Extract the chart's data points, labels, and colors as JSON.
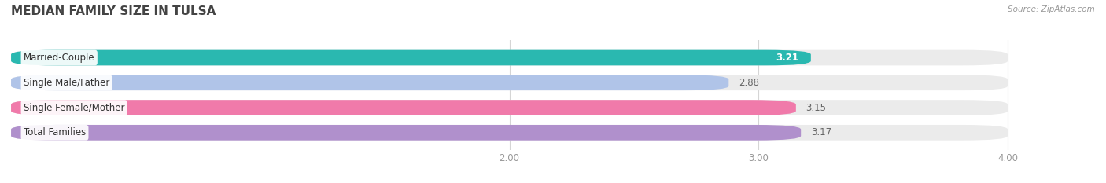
{
  "title": "MEDIAN FAMILY SIZE IN TULSA",
  "source": "Source: ZipAtlas.com",
  "categories": [
    "Married-Couple",
    "Single Male/Father",
    "Single Female/Mother",
    "Total Families"
  ],
  "values": [
    3.21,
    2.88,
    3.15,
    3.17
  ],
  "bar_colors": [
    "#2ab8b0",
    "#b0c4e8",
    "#f07aaa",
    "#b090cc"
  ],
  "bar_bg_color": "#ebebeb",
  "xmin": 0.0,
  "xmax": 4.0,
  "xlim_left": 0.0,
  "xlim_right": 4.35,
  "xticks": [
    2.0,
    3.0,
    4.0
  ],
  "xtick_labels": [
    "2.00",
    "3.00",
    "4.00"
  ],
  "bar_height": 0.62,
  "label_fontsize": 8.5,
  "value_fontsize": 8.5,
  "title_fontsize": 11,
  "bg_color": "#ffffff",
  "value_label_color_inside": "#ffffff",
  "value_label_color_outside": "#666666",
  "inside_threshold": 3.2
}
